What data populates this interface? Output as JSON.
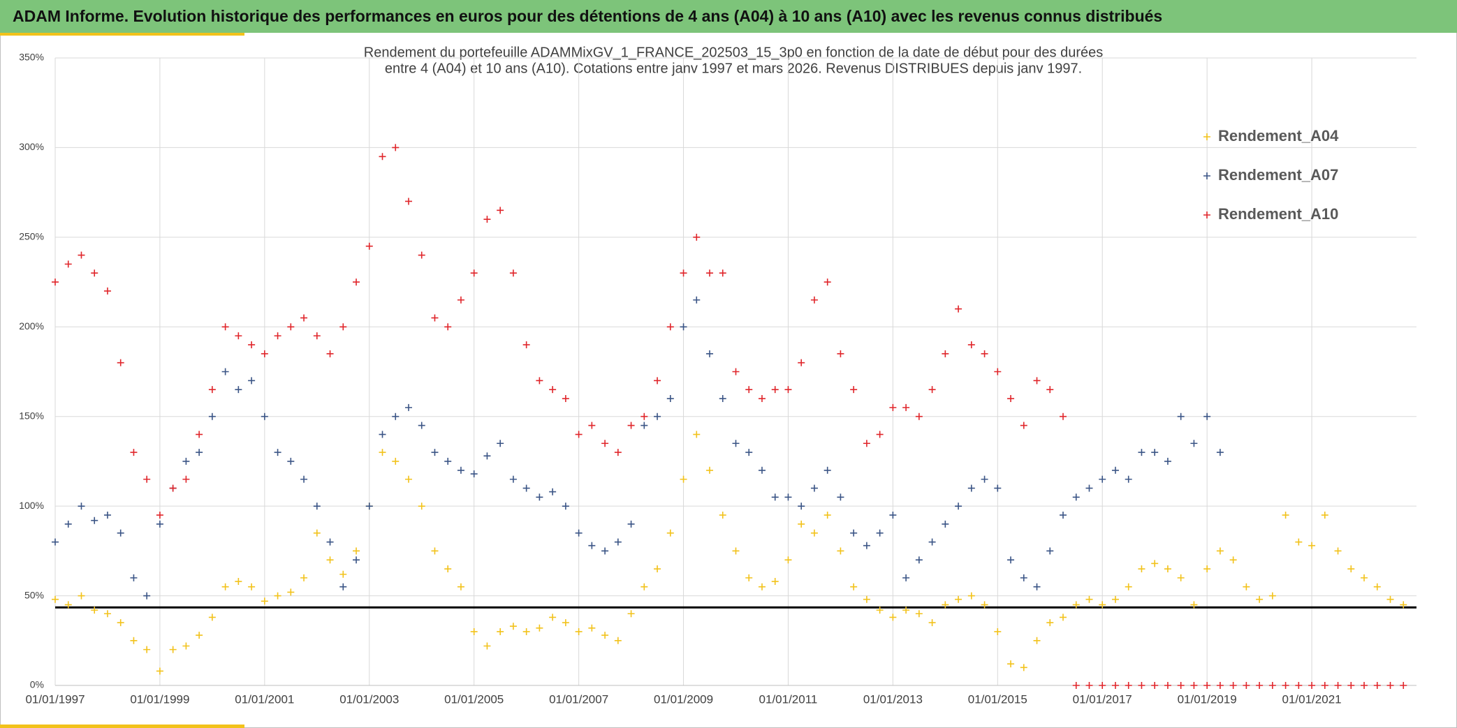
{
  "header": {
    "title": "ADAM Informe. Evolution historique des performances en euros pour des détentions de 4 ans (A04) à 10 ans (A10) avec les revenus connus distribués"
  },
  "chart_data": {
    "type": "scatter",
    "title": [
      "Rendement du portefeuille ADAMMixGV_1_FRANCE_202503_15_3p0  en fonction de la date de début pour des durées",
      "entre 4 (A04) et 10 ans (A10). Cotations entre janv 1997 et mars 2026. Revenus DISTRIBUES depuis janv 1997."
    ],
    "x": [
      1997,
      1997.25,
      1997.5,
      1997.75,
      1998,
      1998.25,
      1998.5,
      1998.75,
      1999,
      1999.25,
      1999.5,
      1999.75,
      2000,
      2000.25,
      2000.5,
      2000.75,
      2001,
      2001.25,
      2001.5,
      2001.75,
      2002,
      2002.25,
      2002.5,
      2002.75,
      2003,
      2003.25,
      2003.5,
      2003.75,
      2004,
      2004.25,
      2004.5,
      2004.75,
      2005,
      2005.25,
      2005.5,
      2005.75,
      2006,
      2006.25,
      2006.5,
      2006.75,
      2007,
      2007.25,
      2007.5,
      2007.75,
      2008,
      2008.25,
      2008.5,
      2008.75,
      2009,
      2009.25,
      2009.5,
      2009.75,
      2010,
      2010.25,
      2010.5,
      2010.75,
      2011,
      2011.25,
      2011.5,
      2011.75,
      2012,
      2012.25,
      2012.5,
      2012.75,
      2013,
      2013.25,
      2013.5,
      2013.75,
      2014,
      2014.25,
      2014.5,
      2014.75,
      2015,
      2015.25,
      2015.5,
      2015.75,
      2016,
      2016.25,
      2016.5,
      2016.75,
      2017,
      2017.25,
      2017.5,
      2017.75,
      2018,
      2018.25,
      2018.5,
      2018.75,
      2019,
      2019.25,
      2019.5,
      2019.75,
      2020,
      2020.25,
      2020.5,
      2020.75,
      2021,
      2021.25,
      2021.5,
      2021.75,
      2022,
      2022.25,
      2022.5,
      2022.75
    ],
    "series": [
      {
        "name": "Rendement_A04",
        "color": "#f2c21b",
        "values": [
          48,
          45,
          50,
          42,
          40,
          35,
          25,
          20,
          8,
          20,
          22,
          28,
          38,
          55,
          58,
          55,
          47,
          50,
          52,
          60,
          85,
          70,
          62,
          75,
          100,
          130,
          125,
          115,
          100,
          75,
          65,
          55,
          30,
          22,
          30,
          33,
          30,
          32,
          38,
          35,
          30,
          32,
          28,
          25,
          40,
          55,
          65,
          85,
          115,
          140,
          120,
          95,
          75,
          60,
          55,
          58,
          70,
          90,
          85,
          95,
          75,
          55,
          48,
          42,
          38,
          42,
          40,
          35,
          45,
          48,
          50,
          45,
          30,
          12,
          10,
          25,
          35,
          38,
          45,
          48,
          45,
          48,
          55,
          65,
          68,
          65,
          60,
          45,
          65,
          75,
          70,
          55,
          48,
          50,
          95,
          80,
          78,
          95,
          75,
          65,
          60,
          55,
          48,
          45
        ]
      },
      {
        "name": "Rendement_A07",
        "color": "#3b5586",
        "values": [
          80,
          90,
          100,
          92,
          95,
          85,
          60,
          50,
          90,
          110,
          125,
          130,
          150,
          175,
          165,
          170,
          150,
          130,
          125,
          115,
          100,
          80,
          55,
          70,
          100,
          140,
          150,
          155,
          145,
          130,
          125,
          120,
          118,
          128,
          135,
          115,
          110,
          105,
          108,
          100,
          85,
          78,
          75,
          80,
          90,
          145,
          150,
          160,
          200,
          215,
          185,
          160,
          135,
          130,
          120,
          105,
          105,
          100,
          110,
          120,
          105,
          85,
          78,
          85,
          95,
          60,
          70,
          80,
          90,
          100,
          110,
          115,
          110,
          70,
          60,
          55,
          75,
          95,
          105,
          110,
          115,
          120,
          115,
          130,
          130,
          125,
          150,
          135,
          150,
          130,
          null,
          null,
          null,
          null,
          null,
          null,
          null,
          null,
          null,
          null,
          null,
          null,
          null,
          null
        ]
      },
      {
        "name": "Rendement_A10",
        "color": "#e0262b",
        "values": [
          225,
          235,
          240,
          230,
          220,
          180,
          130,
          115,
          95,
          110,
          115,
          140,
          165,
          200,
          195,
          190,
          185,
          195,
          200,
          205,
          195,
          185,
          200,
          225,
          245,
          295,
          300,
          270,
          240,
          205,
          200,
          215,
          230,
          260,
          265,
          230,
          190,
          170,
          165,
          160,
          140,
          145,
          135,
          130,
          145,
          150,
          170,
          200,
          230,
          250,
          230,
          230,
          175,
          165,
          160,
          165,
          165,
          180,
          215,
          225,
          185,
          165,
          135,
          140,
          155,
          155,
          150,
          165,
          185,
          210,
          190,
          185,
          175,
          160,
          145,
          170,
          165,
          150,
          0,
          0,
          0,
          0,
          0,
          0,
          0,
          0,
          0,
          0,
          0,
          0,
          0,
          0,
          0,
          0,
          0,
          0,
          0,
          0,
          0,
          0,
          0,
          0,
          0,
          0
        ]
      }
    ],
    "xlim": [
      1997,
      2023
    ],
    "xticks": [
      {
        "value": 1997,
        "label": "01/01/1997"
      },
      {
        "value": 1999,
        "label": "01/01/1999"
      },
      {
        "value": 2001,
        "label": "01/01/2001"
      },
      {
        "value": 2003,
        "label": "01/01/2003"
      },
      {
        "value": 2005,
        "label": "01/01/2005"
      },
      {
        "value": 2007,
        "label": "01/01/2007"
      },
      {
        "value": 2009,
        "label": "01/01/2009"
      },
      {
        "value": 2011,
        "label": "01/01/2011"
      },
      {
        "value": 2013,
        "label": "01/01/2013"
      },
      {
        "value": 2015,
        "label": "01/01/2015"
      },
      {
        "value": 2017,
        "label": "01/01/2017"
      },
      {
        "value": 2019,
        "label": "01/01/2019"
      },
      {
        "value": 2021,
        "label": "01/01/2021"
      }
    ],
    "ylim": [
      0,
      350
    ],
    "yticks": [
      {
        "value": 0,
        "label": "0%"
      },
      {
        "value": 50,
        "label": "50%"
      },
      {
        "value": 100,
        "label": "100%"
      },
      {
        "value": 150,
        "label": "150%"
      },
      {
        "value": 200,
        "label": "200%"
      },
      {
        "value": 250,
        "label": "250%"
      },
      {
        "value": 300,
        "label": "300%"
      },
      {
        "value": 350,
        "label": "350%"
      }
    ],
    "hline": 43.5,
    "grid": true,
    "legend": "top-right"
  }
}
